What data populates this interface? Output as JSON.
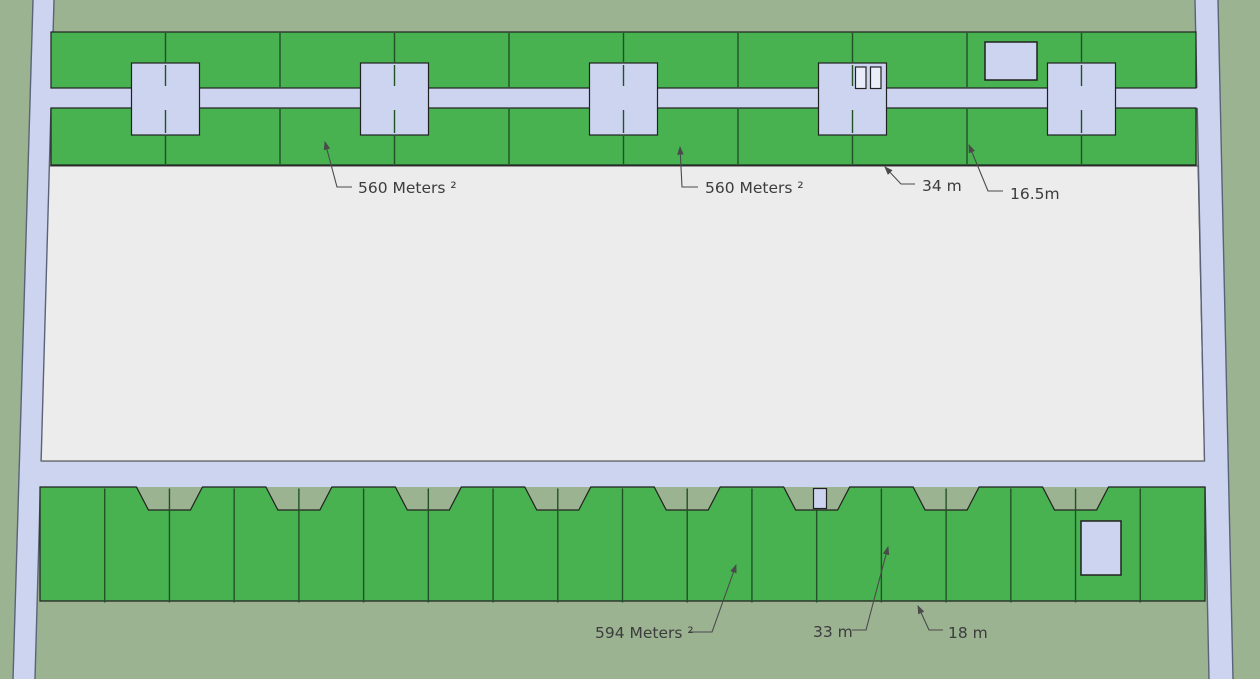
{
  "scene": {
    "description": "Residential subdivision site plan with two strips of green plots along roads and a large empty block in the middle",
    "top_section": {
      "rows": 2,
      "plots_per_row": 10
    },
    "bottom_section": {
      "plots": 18
    }
  },
  "labels": {
    "area_top_1": "560 Meters ²",
    "area_top_2": "560 Meters ²",
    "depth_top": "34 m",
    "width_top": "16.5m",
    "area_bottom": "594 Meters ²",
    "depth_bottom": "33 m",
    "width_bottom": "18 m"
  },
  "plots": {
    "top": {
      "area_label": "560 Meters ²",
      "depth_label": "34 m",
      "width_label": "16.5m"
    },
    "bottom": {
      "area_label": "594 Meters ²",
      "depth_label": "33 m",
      "width_label": "18 m"
    }
  },
  "colors": {
    "background": "#9cb392",
    "road": "#cdd4ef",
    "plot": "#48b250",
    "empty_block": "#ececec",
    "outline": "#212121",
    "boundary": "#215227",
    "road_edge": "#5a6377",
    "label_text": "#3c3c3c",
    "leader": "#4a4a4a",
    "door_fill": "#e9edf9"
  }
}
